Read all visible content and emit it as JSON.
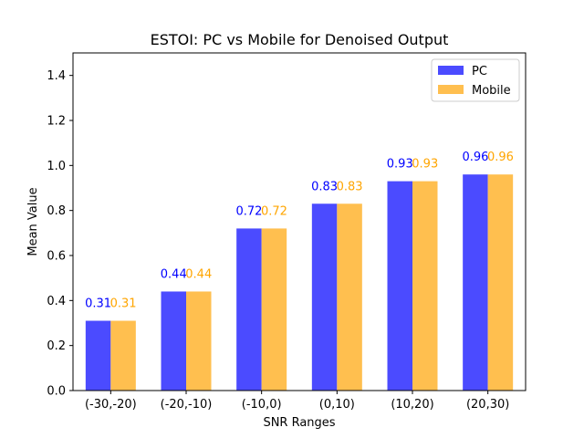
{
  "chart_data": {
    "type": "bar",
    "title": "ESTOI: PC vs Mobile for Denoised Output",
    "xlabel": "SNR Ranges",
    "ylabel": "Mean Value",
    "ylim": [
      0,
      1.5
    ],
    "yticks": [
      "0.0",
      "0.2",
      "0.4",
      "0.6",
      "0.8",
      "1.0",
      "1.2",
      "1.4"
    ],
    "categories": [
      "(-30,-20)",
      "(-20,-10)",
      "(-10,0)",
      "(0,10)",
      "(10,20)",
      "(20,30)"
    ],
    "series": [
      {
        "name": "PC",
        "color": "#4b4bff",
        "label_color": "#0000ff",
        "values": [
          0.31,
          0.44,
          0.72,
          0.83,
          0.93,
          0.96
        ],
        "labels": [
          "0.31",
          "0.44",
          "0.72",
          "0.83",
          "0.93",
          "0.96"
        ]
      },
      {
        "name": "Mobile",
        "color": "#ffbf4f",
        "label_color": "#ffa500",
        "values": [
          0.31,
          0.44,
          0.72,
          0.83,
          0.93,
          0.96
        ],
        "labels": [
          "0.31",
          "0.44",
          "0.72",
          "0.83",
          "0.93",
          "0.96"
        ]
      }
    ],
    "legend": "top-right",
    "grid": false
  }
}
